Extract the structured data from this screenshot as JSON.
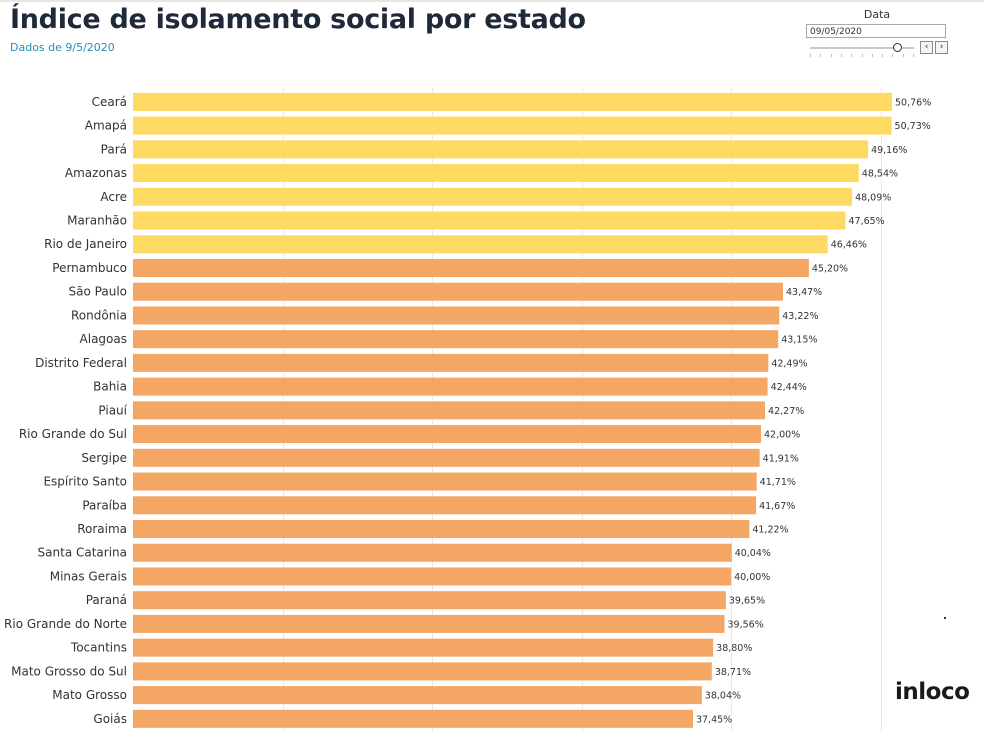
{
  "title": "Índice de isolamento social por estado",
  "subtitle": "Dados de 9/5/2020",
  "filter": {
    "label": "Data",
    "value": "09/05/2020",
    "prev_icon": "‹",
    "next_icon": "›"
  },
  "logo": "inloco",
  "colors": {
    "top_group": "#FFDA63",
    "rest": "#F4A664",
    "label": "#333333",
    "grid": "#e9e9e9"
  },
  "chart_data": {
    "type": "bar",
    "orientation": "horizontal",
    "title": "Índice de isolamento social por estado",
    "subtitle": "Dados de 9/5/2020",
    "xlabel": "",
    "ylabel": "",
    "xlim": [
      0,
      55
    ],
    "grid": true,
    "value_suffix": "%",
    "highlight_count": 7,
    "categories": [
      "Ceará",
      "Amapá",
      "Pará",
      "Amazonas",
      "Acre",
      "Maranhão",
      "Rio de Janeiro",
      "Pernambuco",
      "São Paulo",
      "Rondônia",
      "Alagoas",
      "Distrito Federal",
      "Bahia",
      "Piauí",
      "Rio Grande do Sul",
      "Sergipe",
      "Espírito Santo",
      "Paraíba",
      "Roraima",
      "Santa Catarina",
      "Minas Gerais",
      "Paraná",
      "Rio Grande do Norte",
      "Tocantins",
      "Mato Grosso do Sul",
      "Mato Grosso",
      "Goiás"
    ],
    "values": [
      50.76,
      50.73,
      49.16,
      48.54,
      48.09,
      47.65,
      46.46,
      45.2,
      43.47,
      43.22,
      43.15,
      42.49,
      42.44,
      42.27,
      42.0,
      41.91,
      41.71,
      41.67,
      41.22,
      40.04,
      40.0,
      39.65,
      39.56,
      38.8,
      38.71,
      38.04,
      37.45
    ],
    "value_labels": [
      "50,76%",
      "50,73%",
      "49,16%",
      "48,54%",
      "48,09%",
      "47,65%",
      "46,46%",
      "45,20%",
      "43,47%",
      "43,22%",
      "43,15%",
      "42,49%",
      "42,44%",
      "42,27%",
      "42,00%",
      "41,91%",
      "41,71%",
      "41,67%",
      "41,22%",
      "40,04%",
      "40,00%",
      "39,65%",
      "39,56%",
      "38,80%",
      "38,71%",
      "38,04%",
      "37,45%"
    ]
  }
}
